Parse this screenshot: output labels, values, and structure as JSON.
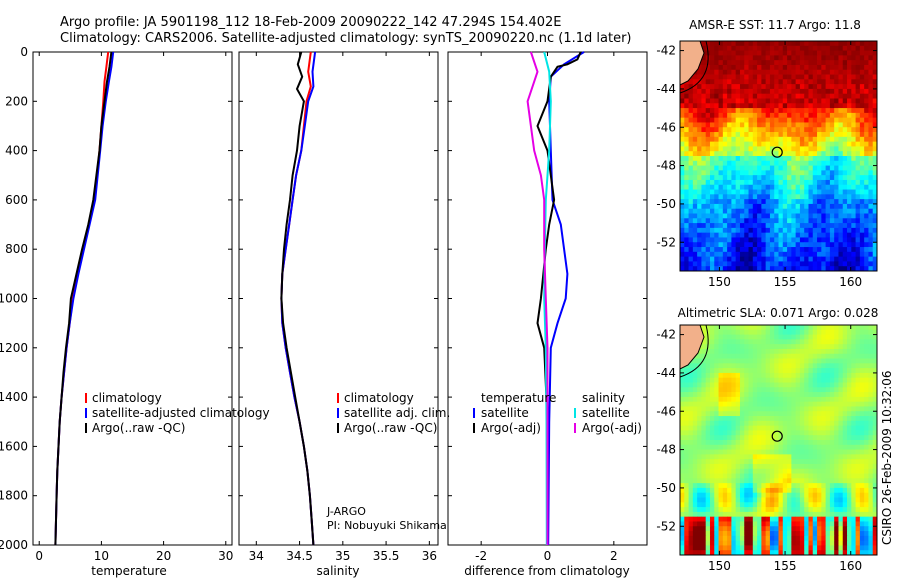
{
  "header": {
    "line1": "Argo profile: JA 5901198_112 18-Feb-2009 20090222_142 47.294S 154.402E",
    "line2": "Climatology: CARS2006. Satellite-adjusted climatology: synTS_20090220.nc (1.1d later)"
  },
  "colors": {
    "climatology": "#ff0000",
    "satellite": "#0000ff",
    "argo": "#000000",
    "sat_salinity": "#00e5e5",
    "argo_salinity": "#e500e5"
  },
  "chart_data": [
    {
      "type": "line",
      "xlabel": "temperature",
      "xlim": [
        -1,
        31
      ],
      "xticks": [
        0,
        10,
        20,
        30
      ],
      "xtick_labels": [
        "0",
        "10",
        "20",
        "30"
      ],
      "ylim": [
        2000,
        0
      ],
      "yticks": [
        0,
        200,
        400,
        600,
        800,
        1000,
        1200,
        1400,
        1600,
        1800,
        2000
      ],
      "ytick_labels": [
        "0",
        "200",
        "400",
        "600",
        "800",
        "1000",
        "1200",
        "1400",
        "1600",
        "1800",
        "2000"
      ],
      "legend": [
        "climatology",
        "satellite-adjusted climatology",
        "Argo(..raw -QC)"
      ],
      "series": [
        {
          "name": "climatology",
          "color": "#ff0000",
          "points": [
            [
              11.1,
              0
            ],
            [
              10.8,
              60
            ],
            [
              10.5,
              120
            ],
            [
              10.3,
              200
            ],
            [
              10.0,
              300
            ],
            [
              9.7,
              400
            ],
            [
              9.3,
              500
            ],
            [
              8.9,
              600
            ],
            [
              8.0,
              700
            ],
            [
              7.1,
              800
            ],
            [
              6.2,
              900
            ],
            [
              5.4,
              1000
            ],
            [
              4.9,
              1100
            ],
            [
              4.4,
              1200
            ],
            [
              4.0,
              1300
            ],
            [
              3.6,
              1400
            ],
            [
              3.3,
              1500
            ],
            [
              3.1,
              1600
            ],
            [
              2.9,
              1700
            ],
            [
              2.8,
              1800
            ],
            [
              2.7,
              1900
            ],
            [
              2.6,
              2000
            ]
          ]
        },
        {
          "name": "satellite",
          "color": "#0000ff",
          "points": [
            [
              11.9,
              0
            ],
            [
              11.6,
              60
            ],
            [
              11.2,
              120
            ],
            [
              10.7,
              200
            ],
            [
              10.2,
              300
            ],
            [
              9.8,
              400
            ],
            [
              9.4,
              500
            ],
            [
              9.0,
              600
            ],
            [
              8.1,
              700
            ],
            [
              7.2,
              800
            ],
            [
              6.3,
              900
            ],
            [
              5.5,
              1000
            ],
            [
              4.9,
              1100
            ],
            [
              4.4,
              1200
            ],
            [
              4.0,
              1300
            ],
            [
              3.6,
              1400
            ],
            [
              3.3,
              1500
            ],
            [
              3.1,
              1600
            ],
            [
              2.9,
              1700
            ],
            [
              2.8,
              1800
            ],
            [
              2.7,
              1900
            ],
            [
              2.6,
              2000
            ]
          ]
        },
        {
          "name": "Argo",
          "color": "#000000",
          "points": [
            [
              11.6,
              0
            ],
            [
              11.3,
              60
            ],
            [
              10.9,
              120
            ],
            [
              10.5,
              200
            ],
            [
              10.0,
              300
            ],
            [
              9.7,
              400
            ],
            [
              9.2,
              500
            ],
            [
              8.7,
              600
            ],
            [
              7.9,
              700
            ],
            [
              6.9,
              800
            ],
            [
              6.0,
              900
            ],
            [
              5.1,
              1000
            ],
            [
              4.8,
              1100
            ],
            [
              4.3,
              1200
            ],
            [
              3.9,
              1300
            ],
            [
              3.6,
              1400
            ],
            [
              3.3,
              1500
            ],
            [
              3.1,
              1600
            ],
            [
              2.9,
              1700
            ],
            [
              2.8,
              1800
            ],
            [
              2.7,
              1900
            ],
            [
              2.6,
              2000
            ]
          ]
        }
      ]
    },
    {
      "type": "line",
      "xlabel": "salinity",
      "xlim": [
        33.8,
        36.1
      ],
      "xticks": [
        34,
        34.5,
        35,
        35.5,
        36
      ],
      "xtick_labels": [
        "34",
        "34.5",
        "35",
        "35.5",
        "36"
      ],
      "ylim": [
        2000,
        0
      ],
      "legend": [
        "climatology",
        "satellite adj. clim.",
        "Argo(..raw -QC)"
      ],
      "annotation": [
        "J-ARGO",
        "PI: Nobuyuki Shikama"
      ],
      "series": [
        {
          "name": "climatology",
          "color": "#ff0000",
          "points": [
            [
              34.63,
              0
            ],
            [
              34.6,
              80
            ],
            [
              34.63,
              140
            ],
            [
              34.58,
              200
            ],
            [
              34.55,
              300
            ],
            [
              34.52,
              400
            ],
            [
              34.46,
              500
            ],
            [
              34.42,
              600
            ],
            [
              34.38,
              700
            ],
            [
              34.34,
              800
            ],
            [
              34.3,
              900
            ],
            [
              34.29,
              1000
            ],
            [
              34.3,
              1100
            ],
            [
              34.34,
              1200
            ],
            [
              34.39,
              1300
            ],
            [
              34.44,
              1400
            ],
            [
              34.5,
              1500
            ],
            [
              34.55,
              1600
            ],
            [
              34.59,
              1700
            ],
            [
              34.62,
              1800
            ],
            [
              34.64,
              1900
            ],
            [
              34.66,
              2000
            ]
          ]
        },
        {
          "name": "satellite",
          "color": "#0000ff",
          "points": [
            [
              34.68,
              0
            ],
            [
              34.65,
              80
            ],
            [
              34.66,
              140
            ],
            [
              34.6,
              200
            ],
            [
              34.56,
              300
            ],
            [
              34.52,
              400
            ],
            [
              34.46,
              500
            ],
            [
              34.42,
              600
            ],
            [
              34.38,
              700
            ],
            [
              34.34,
              800
            ],
            [
              34.3,
              900
            ],
            [
              34.29,
              1000
            ],
            [
              34.3,
              1100
            ],
            [
              34.34,
              1200
            ],
            [
              34.39,
              1300
            ],
            [
              34.44,
              1400
            ],
            [
              34.5,
              1500
            ],
            [
              34.55,
              1600
            ],
            [
              34.59,
              1700
            ],
            [
              34.62,
              1800
            ],
            [
              34.64,
              1900
            ],
            [
              34.66,
              2000
            ]
          ]
        },
        {
          "name": "Argo",
          "color": "#000000",
          "points": [
            [
              34.52,
              0
            ],
            [
              34.48,
              50
            ],
            [
              34.53,
              100
            ],
            [
              34.47,
              150
            ],
            [
              34.55,
              200
            ],
            [
              34.5,
              300
            ],
            [
              34.47,
              400
            ],
            [
              34.42,
              500
            ],
            [
              34.39,
              600
            ],
            [
              34.35,
              700
            ],
            [
              34.32,
              800
            ],
            [
              34.3,
              900
            ],
            [
              34.29,
              1000
            ],
            [
              34.31,
              1100
            ],
            [
              34.35,
              1200
            ],
            [
              34.4,
              1300
            ],
            [
              34.45,
              1400
            ],
            [
              34.5,
              1500
            ],
            [
              34.55,
              1600
            ],
            [
              34.59,
              1700
            ],
            [
              34.62,
              1800
            ],
            [
              34.64,
              1900
            ],
            [
              34.66,
              2000
            ]
          ]
        }
      ]
    },
    {
      "type": "line",
      "xlabel": "difference from climatology",
      "xlim": [
        -3,
        3
      ],
      "xticks": [
        -2,
        0,
        2
      ],
      "xtick_labels": [
        "-2",
        "0",
        "2"
      ],
      "ylim": [
        2000,
        0
      ],
      "legend_temperature": [
        "temperature",
        "satellite",
        "Argo(-adj)"
      ],
      "legend_salinity": [
        "salinity",
        "satellite",
        "Argo(-adj)"
      ],
      "series": [
        {
          "name": "temperature satellite",
          "color": "#0000ff",
          "points": [
            [
              1.1,
              0
            ],
            [
              0.5,
              50
            ],
            [
              0.1,
              100
            ],
            [
              0.05,
              200
            ],
            [
              0.1,
              400
            ],
            [
              0.15,
              600
            ],
            [
              0.4,
              700
            ],
            [
              0.5,
              800
            ],
            [
              0.6,
              900
            ],
            [
              0.55,
              1000
            ],
            [
              0.3,
              1100
            ],
            [
              0.1,
              1200
            ],
            [
              0.05,
              1500
            ],
            [
              0.02,
              2000
            ]
          ]
        },
        {
          "name": "temperature Argo",
          "color": "#000000",
          "points": [
            [
              1.0,
              0
            ],
            [
              0.9,
              30
            ],
            [
              0.6,
              50
            ],
            [
              0.3,
              60
            ],
            [
              0.1,
              100
            ],
            [
              0.0,
              200
            ],
            [
              -0.3,
              300
            ],
            [
              0.0,
              400
            ],
            [
              0.1,
              500
            ],
            [
              0.2,
              600
            ],
            [
              0.05,
              700
            ],
            [
              -0.05,
              800
            ],
            [
              -0.2,
              1000
            ],
            [
              -0.3,
              1100
            ],
            [
              -0.1,
              1200
            ],
            [
              0.0,
              1500
            ],
            [
              0.0,
              2000
            ]
          ]
        },
        {
          "name": "salinity satellite",
          "color": "#00e5e5",
          "points": [
            [
              -0.1,
              0
            ],
            [
              0.05,
              80
            ],
            [
              0.1,
              200
            ],
            [
              0.05,
              400
            ],
            [
              -0.05,
              600
            ],
            [
              -0.08,
              800
            ],
            [
              -0.1,
              1000
            ],
            [
              -0.05,
              1200
            ],
            [
              -0.03,
              1500
            ],
            [
              -0.02,
              2000
            ]
          ]
        },
        {
          "name": "salinity Argo",
          "color": "#e500e5",
          "points": [
            [
              -0.5,
              0
            ],
            [
              -0.3,
              80
            ],
            [
              -0.6,
              200
            ],
            [
              -0.5,
              300
            ],
            [
              -0.4,
              400
            ],
            [
              -0.2,
              500
            ],
            [
              -0.1,
              600
            ],
            [
              -0.1,
              800
            ],
            [
              -0.05,
              1000
            ],
            [
              0.0,
              1200
            ],
            [
              0.0,
              2000
            ]
          ]
        }
      ]
    },
    {
      "type": "heatmap",
      "title": "AMSR-E SST: 11.7 Argo: 11.8",
      "xlim": [
        147,
        162
      ],
      "ylim": [
        -53.5,
        -41.5
      ],
      "xticks": [
        150,
        155,
        160
      ],
      "xtick_labels": [
        "150",
        "155",
        "160"
      ],
      "yticks": [
        -42,
        -44,
        -46,
        -48,
        -50,
        -52
      ],
      "ytick_labels": [
        "-42",
        "-44",
        "-46",
        "-48",
        "-50",
        "-52"
      ],
      "marker": [
        154.4,
        -47.3
      ]
    },
    {
      "type": "heatmap",
      "title": "Altimetric SLA: 0.071 Argo: 0.028",
      "xlim": [
        147,
        162
      ],
      "ylim": [
        -53.5,
        -41.5
      ],
      "xticks": [
        150,
        155,
        160
      ],
      "xtick_labels": [
        "150",
        "155",
        "160"
      ],
      "yticks": [
        -42,
        -44,
        -46,
        -48,
        -50,
        -52
      ],
      "ytick_labels": [
        "-42",
        "-44",
        "-46",
        "-48",
        "-50",
        "-52"
      ],
      "marker": [
        154.4,
        -47.3
      ]
    }
  ],
  "side_label": "CSIRO 26-Feb-2009 10:32:06"
}
